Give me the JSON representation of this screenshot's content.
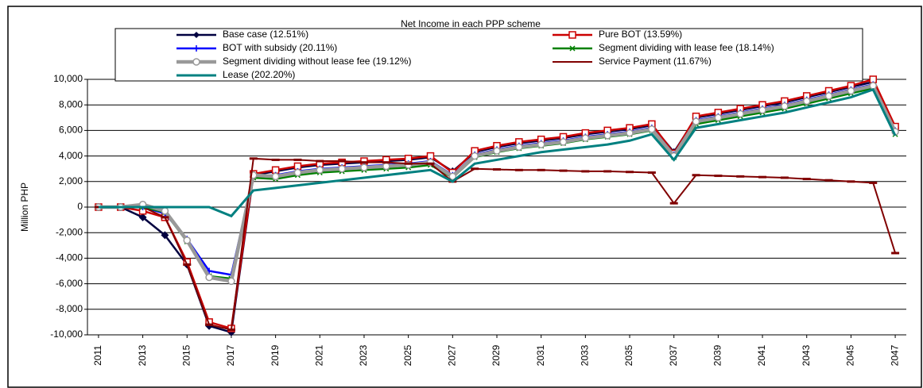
{
  "chart_data": {
    "type": "line",
    "title": "Net Income in each PPP scheme",
    "y_label": "Million PHP",
    "x": [
      2011,
      2012,
      2013,
      2014,
      2015,
      2016,
      2017,
      2018,
      2019,
      2020,
      2021,
      2022,
      2023,
      2024,
      2025,
      2026,
      2027,
      2028,
      2029,
      2030,
      2031,
      2032,
      2033,
      2034,
      2035,
      2036,
      2037,
      2038,
      2039,
      2040,
      2041,
      2042,
      2043,
      2044,
      2045,
      2046,
      2047
    ],
    "xlim": [
      2010.5,
      2047.5
    ],
    "xticks": [
      2011,
      2013,
      2015,
      2017,
      2019,
      2021,
      2023,
      2025,
      2027,
      2029,
      2031,
      2033,
      2035,
      2037,
      2039,
      2041,
      2043,
      2045,
      2047
    ],
    "ylim": [
      -10000,
      10000
    ],
    "yticks": [
      {
        "value": -10000,
        "label": "-10,000"
      },
      {
        "value": -8000,
        "label": "-8,000"
      },
      {
        "value": -6000,
        "label": "-6,000"
      },
      {
        "value": -4000,
        "label": "-4,000"
      },
      {
        "value": -2000,
        "label": "-2,000"
      },
      0,
      {
        "value": 2000,
        "label": "2,000"
      },
      {
        "value": 4000,
        "label": "4,000"
      },
      {
        "value": 6000,
        "label": "6,000"
      },
      {
        "value": 8000,
        "label": "8,000"
      },
      {
        "value": 10000,
        "label": "10,000"
      }
    ],
    "grid": true,
    "legend": "top",
    "series": [
      {
        "name": "Base case (12.51%)",
        "color": "#000040",
        "marker": "diamond",
        "values": [
          0,
          0,
          -800,
          -2200,
          -4500,
          -9300,
          -9800,
          2500,
          2800,
          3100,
          3300,
          3400,
          3500,
          3600,
          3700,
          3900,
          2800,
          4300,
          4700,
          5000,
          5200,
          5400,
          5700,
          5900,
          6100,
          6400,
          4300,
          7000,
          7300,
          7600,
          7900,
          8200,
          8600,
          9000,
          9400,
          9800,
          6200
        ]
      },
      {
        "name": "Pure BOT (13.59%)",
        "color": "#cc0000",
        "marker": "square",
        "values": [
          0,
          0,
          -300,
          -800,
          -4300,
          -9000,
          -9500,
          2600,
          2900,
          3200,
          3400,
          3500,
          3600,
          3700,
          3800,
          4000,
          2700,
          4400,
          4800,
          5100,
          5300,
          5500,
          5800,
          6000,
          6200,
          6500,
          4200,
          7100,
          7400,
          7700,
          8000,
          8300,
          8700,
          9100,
          9500,
          10000,
          6300
        ]
      },
      {
        "name": "BOT with subsidy (20.11%)",
        "color": "#0000ff",
        "marker": "plus",
        "values": [
          0,
          0,
          0,
          -500,
          -2500,
          -5000,
          -5300,
          2400,
          2500,
          2800,
          3000,
          3100,
          3200,
          3300,
          3400,
          3600,
          2500,
          4100,
          4500,
          4800,
          5000,
          5200,
          5500,
          5700,
          5900,
          6200,
          4100,
          6800,
          7100,
          7400,
          7700,
          8000,
          8400,
          8800,
          9200,
          9600,
          6000
        ]
      },
      {
        "name": "Segment dividing with lease fee (18.14%)",
        "color": "#008000",
        "marker": "x",
        "values": [
          0,
          0,
          0,
          -400,
          -2700,
          -5400,
          -5600,
          2300,
          2200,
          2500,
          2700,
          2800,
          2900,
          3000,
          3100,
          3300,
          2300,
          3900,
          4300,
          4600,
          4800,
          5000,
          5300,
          5500,
          5700,
          6000,
          3900,
          6500,
          6800,
          7100,
          7400,
          7700,
          8100,
          8500,
          8900,
          9300,
          5700
        ]
      },
      {
        "name": "Segment dividing without lease fee (19.12%)",
        "color": "#999999",
        "marker": "circle",
        "values": [
          0,
          0,
          200,
          -300,
          -2600,
          -5500,
          -5800,
          2500,
          2400,
          2700,
          2900,
          3000,
          3100,
          3200,
          3300,
          3500,
          2400,
          4000,
          4400,
          4700,
          4900,
          5100,
          5400,
          5600,
          5800,
          6100,
          4000,
          6700,
          7000,
          7300,
          7600,
          7900,
          8300,
          8700,
          9100,
          9500,
          5900
        ]
      },
      {
        "name": "Service Payment (11.67%)",
        "color": "#800000",
        "marker": "dash",
        "values": [
          0,
          0,
          0,
          -800,
          -4500,
          -9200,
          -9600,
          3800,
          3700,
          3700,
          3600,
          3600,
          3500,
          3500,
          3400,
          3400,
          2000,
          3000,
          2950,
          2900,
          2900,
          2850,
          2800,
          2800,
          2750,
          2700,
          300,
          2500,
          2450,
          2400,
          2350,
          2300,
          2200,
          2100,
          2000,
          1900,
          -3600
        ]
      },
      {
        "name": "Lease (202.20%)",
        "color": "#008080",
        "marker": "none",
        "values": [
          0,
          0,
          0,
          0,
          0,
          0,
          -700,
          1300,
          1500,
          1700,
          1900,
          2100,
          2300,
          2500,
          2700,
          2900,
          2000,
          3400,
          3700,
          4000,
          4300,
          4500,
          4700,
          4900,
          5200,
          5700,
          3700,
          6200,
          6500,
          6800,
          7100,
          7400,
          7800,
          8200,
          8600,
          9200,
          5600
        ]
      }
    ]
  }
}
